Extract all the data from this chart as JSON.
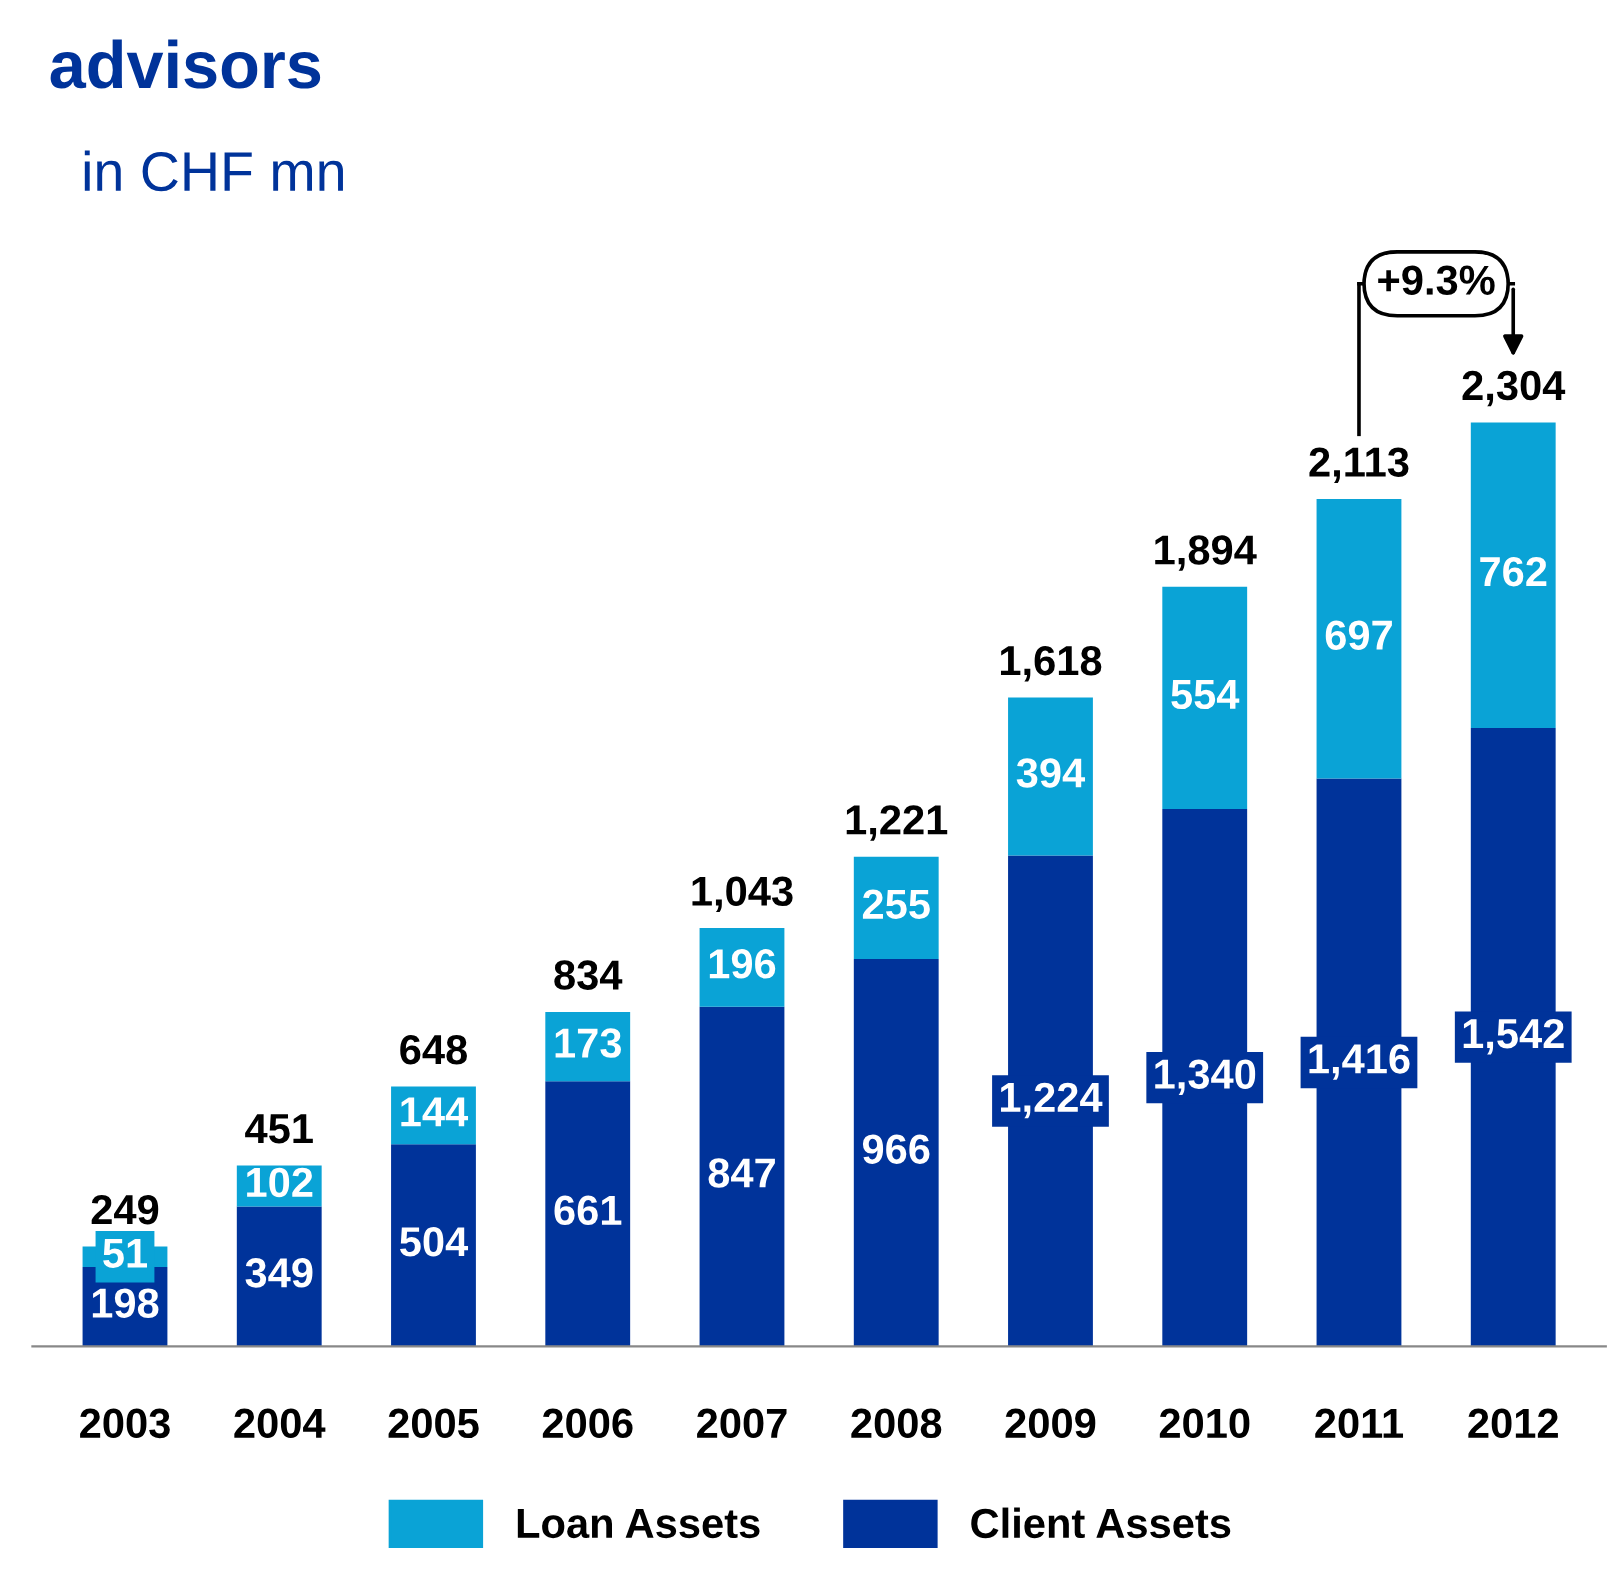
{
  "chart_data": {
    "type": "bar",
    "stacked": true,
    "title": "advisors",
    "subtitle": "in CHF mn",
    "categories": [
      "2003",
      "2004",
      "2005",
      "2006",
      "2007",
      "2008",
      "2009",
      "2010",
      "2011",
      "2012"
    ],
    "series": [
      {
        "name": "Client Assets",
        "color": "#00339a",
        "values": [
          198,
          349,
          504,
          661,
          847,
          966,
          1224,
          1340,
          1416,
          1542
        ],
        "value_labels": [
          "198",
          "349",
          "504",
          "661",
          "847",
          "966",
          "1,224",
          "1,340",
          "1,416",
          "1,542"
        ]
      },
      {
        "name": "Loan Assets",
        "color": "#0aa3d6",
        "values": [
          51,
          102,
          144,
          173,
          196,
          255,
          394,
          554,
          697,
          762
        ],
        "value_labels": [
          "51",
          "102",
          "144",
          "173",
          "196",
          "255",
          "394",
          "554",
          "697",
          "762"
        ]
      }
    ],
    "totals": [
      "249",
      "451",
      "648",
      "834",
      "1,043",
      "1,221",
      "1,618",
      "1,894",
      "2,113",
      "2,304"
    ],
    "annotations": [
      "+9.3%"
    ],
    "legend": "bottom",
    "grid": false
  }
}
